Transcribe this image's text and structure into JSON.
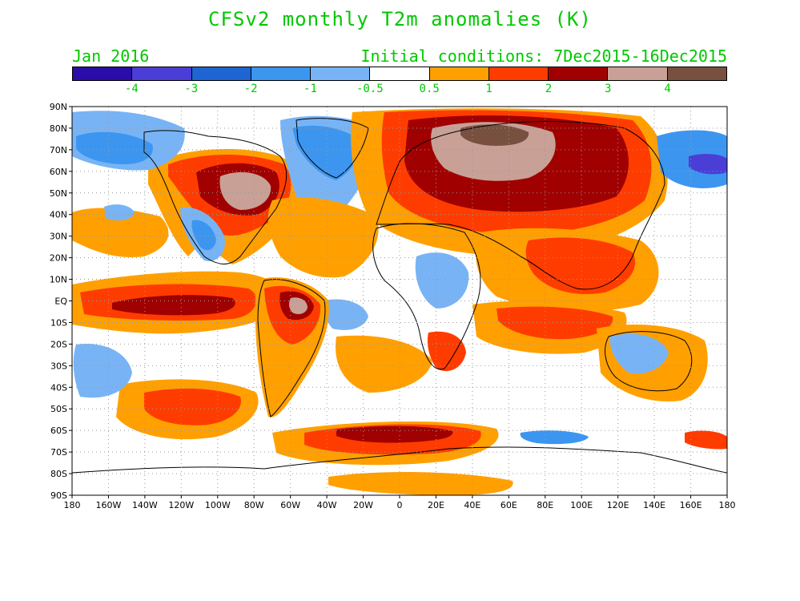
{
  "title": "CFSv2 monthly T2m anomalies (K)",
  "month_label": "Jan 2016",
  "initial_conditions": "Initial conditions: 7Dec2015-16Dec2015",
  "colorbar": {
    "colors": [
      "#2a0ca8",
      "#4a3ed6",
      "#1e64d2",
      "#3c96f0",
      "#78b4f5",
      "#ffffff",
      "#ffa000",
      "#ff3c00",
      "#a00000",
      "#c8a096",
      "#785040"
    ],
    "labels": [
      "-4",
      "-3",
      "-2",
      "-1",
      "-0.5",
      "0.5",
      "1",
      "2",
      "3",
      "4"
    ]
  },
  "axes": {
    "lat_labels": [
      "90N",
      "80N",
      "70N",
      "60N",
      "50N",
      "40N",
      "30N",
      "20N",
      "10N",
      "EQ",
      "10S",
      "20S",
      "30S",
      "40S",
      "50S",
      "60S",
      "70S",
      "80S",
      "90S"
    ],
    "lon_labels": [
      "180",
      "160W",
      "140W",
      "120W",
      "100W",
      "80W",
      "60W",
      "40W",
      "20W",
      "0",
      "20E",
      "40E",
      "60E",
      "80E",
      "100E",
      "120E",
      "140E",
      "160E",
      "180"
    ]
  }
}
